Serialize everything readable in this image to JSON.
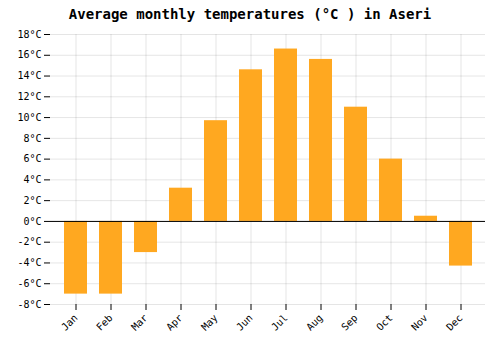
{
  "chart_data": {
    "type": "bar",
    "title": "Average monthly temperatures (°C ) in Aseri",
    "categories": [
      "Jan",
      "Feb",
      "Mar",
      "Apr",
      "May",
      "Jun",
      "Jul",
      "Aug",
      "Sep",
      "Oct",
      "Nov",
      "Dec"
    ],
    "values": [
      -7.0,
      -7.0,
      -3.0,
      3.2,
      9.7,
      14.6,
      16.6,
      15.6,
      11.0,
      6.0,
      0.5,
      -4.3
    ],
    "color": "#FFA820",
    "ylim": [
      -8,
      18
    ],
    "yticks": [
      {
        "value": -8,
        "label": "-8°C"
      },
      {
        "value": -6,
        "label": "-6°C"
      },
      {
        "value": -4,
        "label": "-4°C"
      },
      {
        "value": -2,
        "label": "-2°C"
      },
      {
        "value": 0,
        "label": "0°C"
      },
      {
        "value": 2,
        "label": "2°C"
      },
      {
        "value": 4,
        "label": "4°C"
      },
      {
        "value": 6,
        "label": "6°C"
      },
      {
        "value": 8,
        "label": "8°C"
      },
      {
        "value": 10,
        "label": "10°C"
      },
      {
        "value": 12,
        "label": "12°C"
      },
      {
        "value": 14,
        "label": "14°C"
      },
      {
        "value": 16,
        "label": "16°C"
      },
      {
        "value": 18,
        "label": "18°C"
      }
    ],
    "grid": true
  }
}
